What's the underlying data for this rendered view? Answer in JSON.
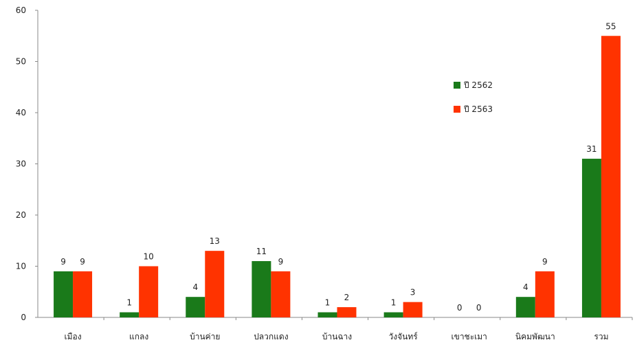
{
  "chart_data": {
    "type": "bar",
    "categories": [
      "เมือง",
      "แกลง",
      "บ้านค่าย",
      "ปลวกแดง",
      "บ้านฉาง",
      "วังจันทร์",
      "เขาชะเมา",
      "นิคมพัฒนา",
      "รวม"
    ],
    "series": [
      {
        "name": "ปี 2562",
        "color": "#1a7a1a",
        "values": [
          9,
          1,
          4,
          11,
          1,
          1,
          0,
          4,
          31
        ]
      },
      {
        "name": "ปี 2563",
        "color": "#ff3300",
        "values": [
          9,
          10,
          13,
          9,
          2,
          3,
          0,
          9,
          55
        ]
      }
    ],
    "yticks": [
      0,
      10,
      20,
      30,
      40,
      50,
      60
    ],
    "ylim": [
      0,
      60
    ],
    "title": "",
    "xlabel": "",
    "ylabel": "",
    "grid": false,
    "legend_position": "right"
  }
}
